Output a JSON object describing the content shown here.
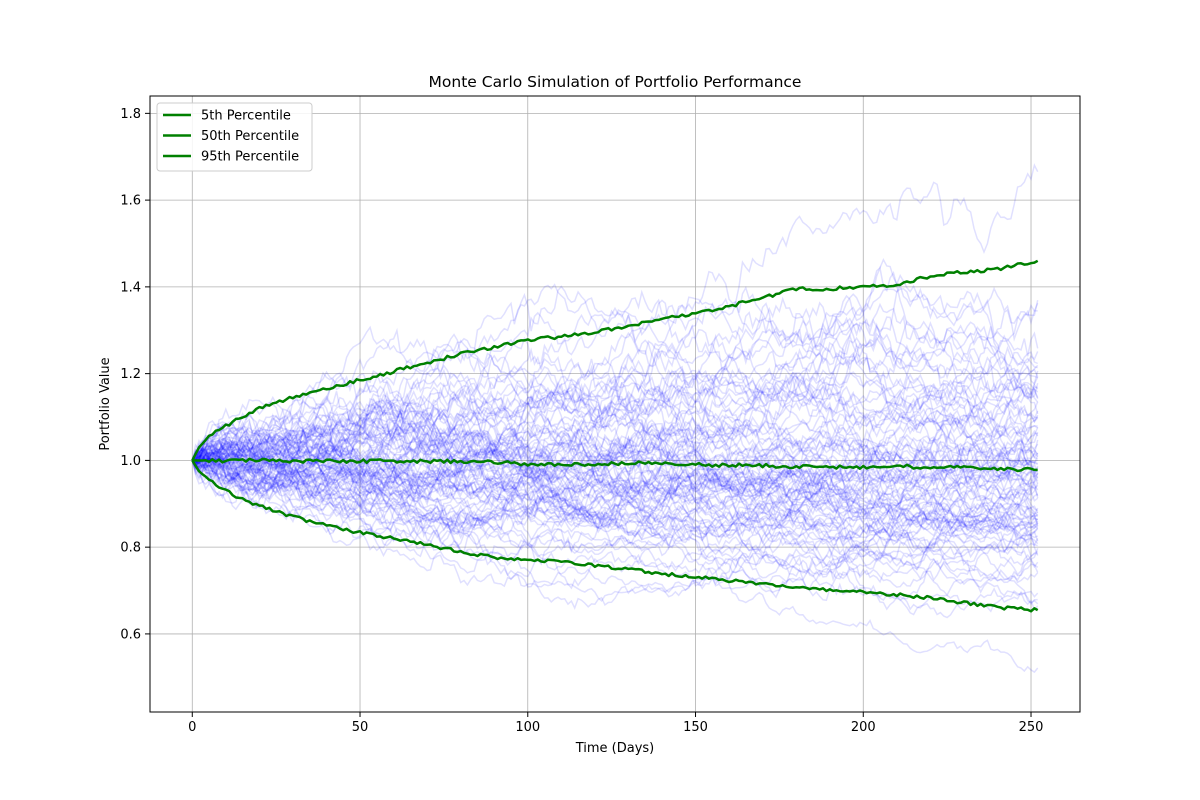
{
  "chart_data": {
    "type": "line",
    "title": "Monte Carlo Simulation of Portfolio Performance",
    "xlabel": "Time (Days)",
    "ylabel": "Portfolio Value",
    "xlim": [
      -12.6,
      264.6
    ],
    "ylim": [
      0.42,
      1.84
    ],
    "xticks": [
      0,
      50,
      100,
      150,
      200,
      250
    ],
    "yticks": [
      0.6,
      0.8,
      1.0,
      1.2,
      1.4,
      1.6,
      1.8
    ],
    "xtick_labels": [
      "0",
      "50",
      "100",
      "150",
      "200",
      "250"
    ],
    "ytick_labels": [
      "0.6",
      "0.8",
      "1.0",
      "1.2",
      "1.4",
      "1.6",
      "1.8"
    ],
    "grid": true,
    "legend_position": "upper-left",
    "simulations": {
      "count": 100,
      "days": 252,
      "start_value": 1.0,
      "color": "#0000ff",
      "opacity": 0.12
    },
    "series": [
      {
        "name": "5th Percentile",
        "color": "#008000",
        "x": [
          0,
          2,
          5,
          10,
          15,
          20,
          30,
          40,
          50,
          60,
          70,
          80,
          90,
          100,
          110,
          120,
          130,
          140,
          150,
          160,
          170,
          180,
          190,
          200,
          210,
          220,
          230,
          240,
          252
        ],
        "values": [
          1.0,
          0.975,
          0.955,
          0.93,
          0.91,
          0.895,
          0.87,
          0.85,
          0.833,
          0.82,
          0.805,
          0.79,
          0.777,
          0.772,
          0.765,
          0.758,
          0.75,
          0.738,
          0.732,
          0.723,
          0.715,
          0.708,
          0.7,
          0.697,
          0.69,
          0.683,
          0.672,
          0.661,
          0.655
        ]
      },
      {
        "name": "50th Percentile",
        "color": "#008000",
        "x": [
          0,
          10,
          20,
          30,
          40,
          50,
          60,
          70,
          80,
          90,
          100,
          110,
          120,
          130,
          140,
          150,
          160,
          170,
          180,
          190,
          200,
          210,
          220,
          230,
          240,
          252
        ],
        "values": [
          1.0,
          0.999,
          1.0,
          0.998,
          0.999,
          0.998,
          0.999,
          0.997,
          0.998,
          0.996,
          0.991,
          0.99,
          0.992,
          0.993,
          0.995,
          0.99,
          0.989,
          0.988,
          0.986,
          0.985,
          0.984,
          0.987,
          0.983,
          0.985,
          0.981,
          0.978
        ]
      },
      {
        "name": "95th Percentile",
        "color": "#008000",
        "x": [
          0,
          2,
          5,
          10,
          15,
          20,
          30,
          40,
          50,
          60,
          70,
          80,
          90,
          100,
          110,
          120,
          130,
          140,
          150,
          160,
          170,
          180,
          190,
          200,
          210,
          220,
          230,
          240,
          252
        ],
        "values": [
          1.0,
          1.03,
          1.055,
          1.08,
          1.1,
          1.12,
          1.145,
          1.165,
          1.185,
          1.205,
          1.225,
          1.245,
          1.262,
          1.278,
          1.285,
          1.295,
          1.31,
          1.325,
          1.34,
          1.355,
          1.375,
          1.395,
          1.395,
          1.402,
          1.405,
          1.425,
          1.435,
          1.44,
          1.46
        ]
      }
    ]
  }
}
